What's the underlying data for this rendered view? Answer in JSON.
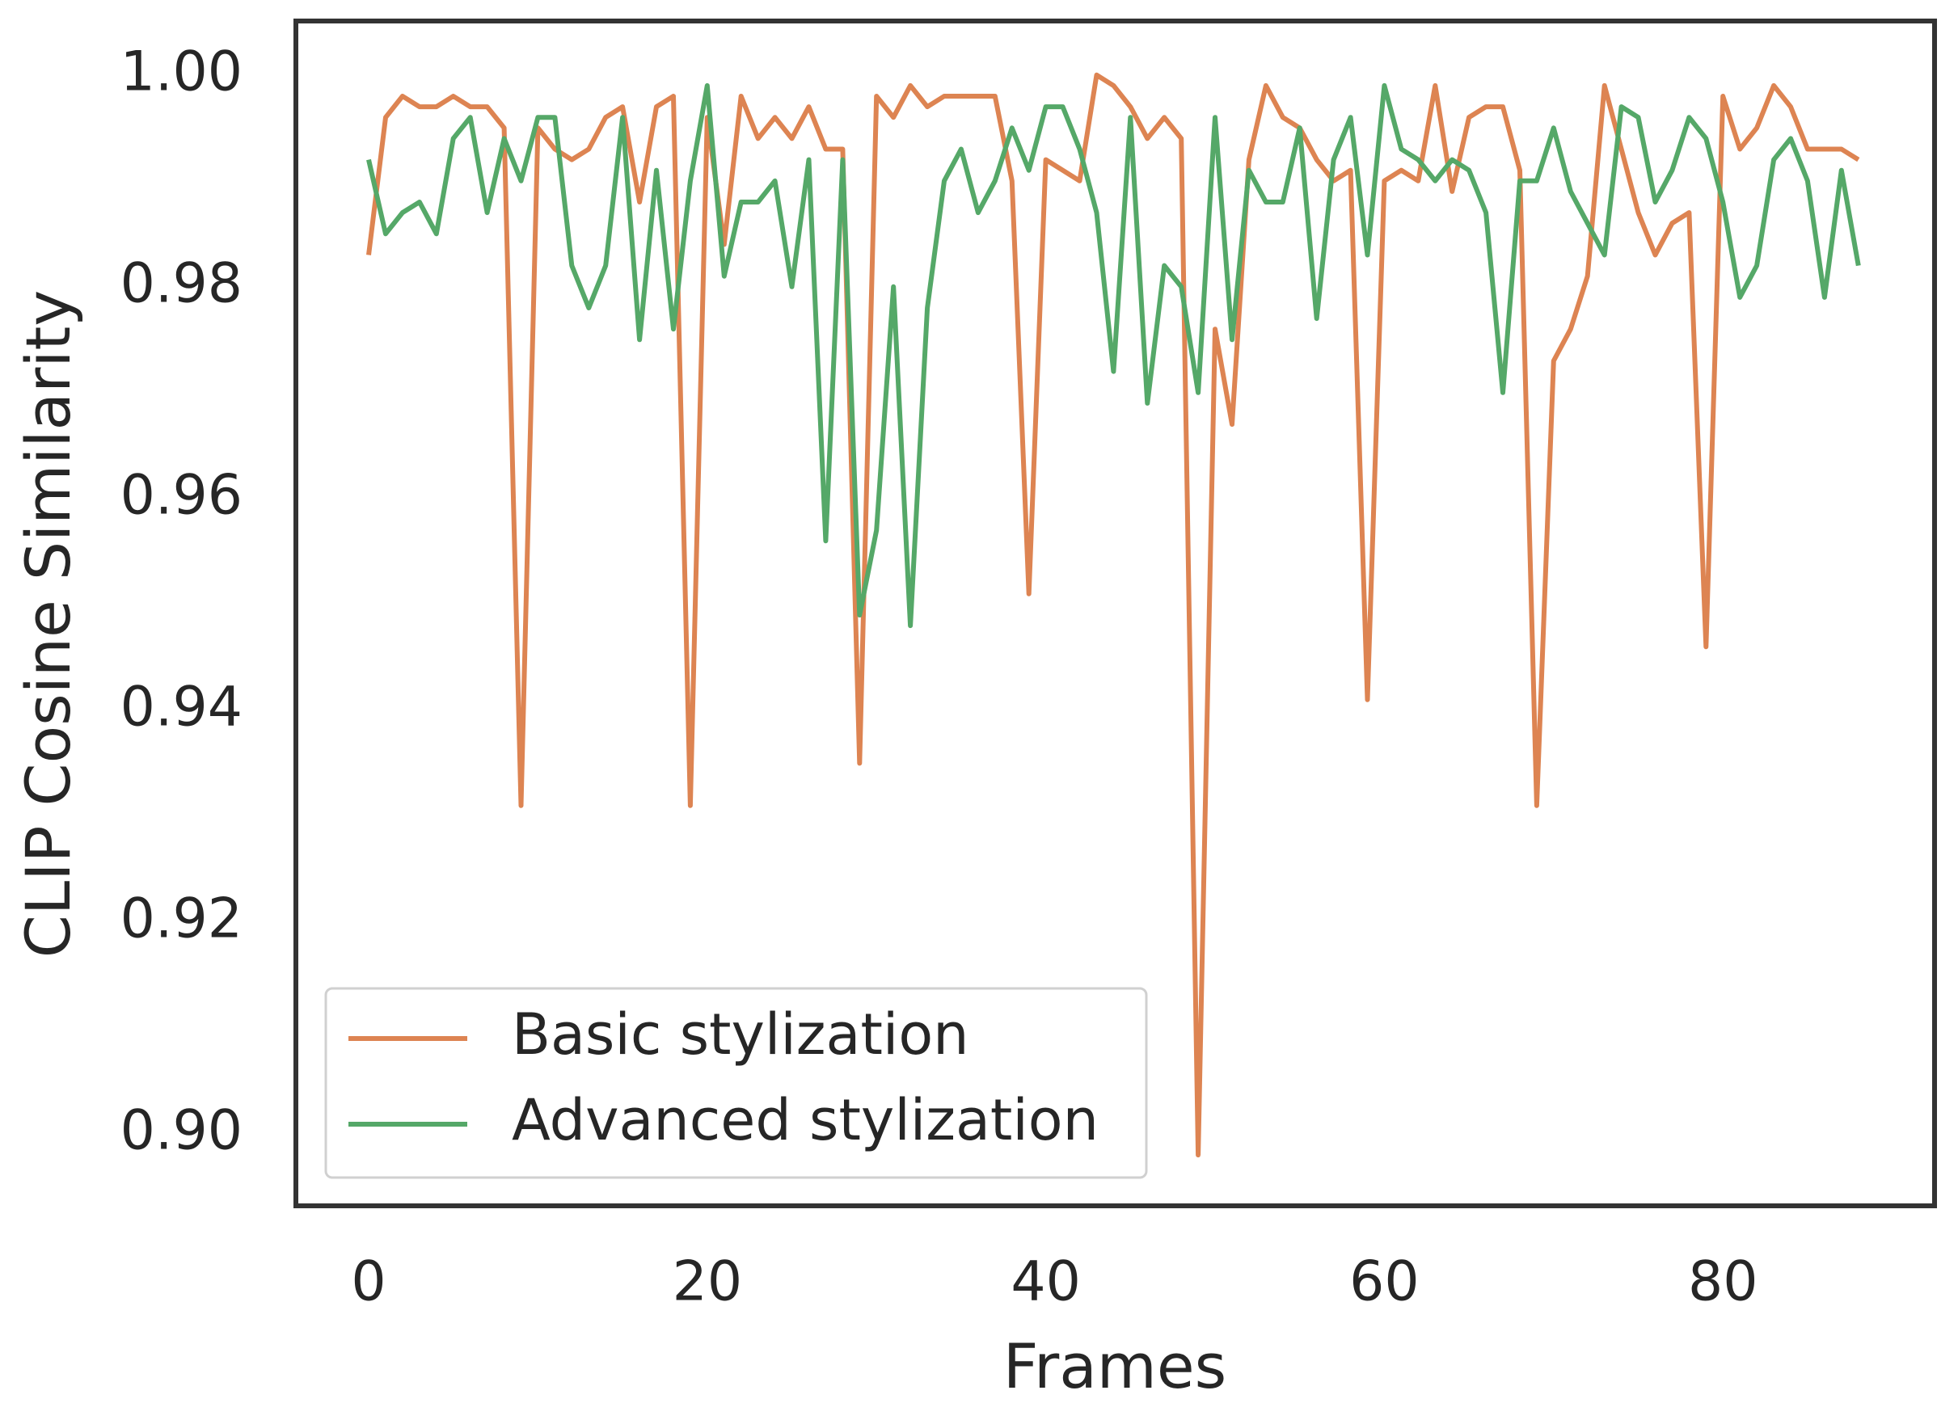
{
  "chart_data": {
    "type": "line",
    "x_label": "Frames",
    "y_label": "CLIP Cosine Similarity",
    "x": [
      0,
      1,
      2,
      3,
      4,
      5,
      6,
      7,
      8,
      9,
      10,
      11,
      12,
      13,
      14,
      15,
      16,
      17,
      18,
      19,
      20,
      21,
      22,
      23,
      24,
      25,
      26,
      27,
      28,
      29,
      30,
      31,
      32,
      33,
      34,
      35,
      36,
      37,
      38,
      39,
      40,
      41,
      42,
      43,
      44,
      45,
      46,
      47,
      48,
      49,
      50,
      51,
      52,
      53,
      54,
      55,
      56,
      57,
      58,
      59,
      60,
      61,
      62,
      63,
      64,
      65,
      66,
      67,
      68,
      69,
      70,
      71,
      72,
      73,
      74,
      75,
      76,
      77,
      78,
      79,
      80,
      81,
      82,
      83,
      84,
      85,
      86,
      87,
      88
    ],
    "series": [
      {
        "name": "Basic stylization",
        "color": "#dd8452",
        "values": [
          0.983,
          0.996,
          0.998,
          0.997,
          0.997,
          0.998,
          0.997,
          0.997,
          0.995,
          0.931,
          0.995,
          0.993,
          0.992,
          0.993,
          0.996,
          0.997,
          0.988,
          0.997,
          0.998,
          0.931,
          0.996,
          0.984,
          0.998,
          0.994,
          0.996,
          0.994,
          0.997,
          0.993,
          0.993,
          0.935,
          0.998,
          0.996,
          0.999,
          0.997,
          0.998,
          0.998,
          0.998,
          0.998,
          0.99,
          0.951,
          0.992,
          0.991,
          0.99,
          1.0,
          0.999,
          0.997,
          0.994,
          0.996,
          0.994,
          0.898,
          0.976,
          0.967,
          0.992,
          0.999,
          0.996,
          0.995,
          0.992,
          0.99,
          0.991,
          0.941,
          0.99,
          0.991,
          0.99,
          0.999,
          0.989,
          0.996,
          0.997,
          0.997,
          0.991,
          0.931,
          0.973,
          0.976,
          0.981,
          0.999,
          0.993,
          0.987,
          0.983,
          0.986,
          0.987,
          0.946,
          0.998,
          0.993,
          0.995,
          0.999,
          0.997,
          0.993,
          0.993,
          0.993,
          0.992
        ]
      },
      {
        "name": "Advanced stylization",
        "color": "#55a868",
        "values": [
          0.992,
          0.985,
          0.987,
          0.988,
          0.985,
          0.994,
          0.996,
          0.987,
          0.994,
          0.99,
          0.996,
          0.996,
          0.982,
          0.978,
          0.982,
          0.996,
          0.975,
          0.991,
          0.976,
          0.99,
          0.999,
          0.981,
          0.988,
          0.988,
          0.99,
          0.98,
          0.992,
          0.956,
          0.992,
          0.949,
          0.957,
          0.98,
          0.948,
          0.978,
          0.99,
          0.993,
          0.987,
          0.99,
          0.995,
          0.991,
          0.997,
          0.997,
          0.993,
          0.987,
          0.972,
          0.996,
          0.969,
          0.982,
          0.98,
          0.97,
          0.996,
          0.975,
          0.991,
          0.988,
          0.988,
          0.995,
          0.977,
          0.992,
          0.996,
          0.983,
          0.999,
          0.993,
          0.992,
          0.99,
          0.992,
          0.991,
          0.987,
          0.97,
          0.99,
          0.99,
          0.995,
          0.989,
          0.986,
          0.983,
          0.997,
          0.996,
          0.988,
          0.991,
          0.996,
          0.994,
          0.988,
          0.979,
          0.982,
          0.992,
          0.994,
          0.99,
          0.979,
          0.991,
          0.982
        ]
      }
    ],
    "xlim": [
      -4.3,
      92.5
    ],
    "ylim": [
      0.8932,
      1.0051
    ],
    "xticks": [
      0,
      20,
      40,
      60,
      80
    ],
    "yticks": [
      {
        "value": 0.9,
        "label": "0.90"
      },
      {
        "value": 0.92,
        "label": "0.92"
      },
      {
        "value": 0.94,
        "label": "0.94"
      },
      {
        "value": 0.96,
        "label": "0.96"
      },
      {
        "value": 0.98,
        "label": "0.98"
      },
      {
        "value": 1.0,
        "label": "1.00"
      }
    ],
    "legend": "lower left",
    "grid": false
  }
}
